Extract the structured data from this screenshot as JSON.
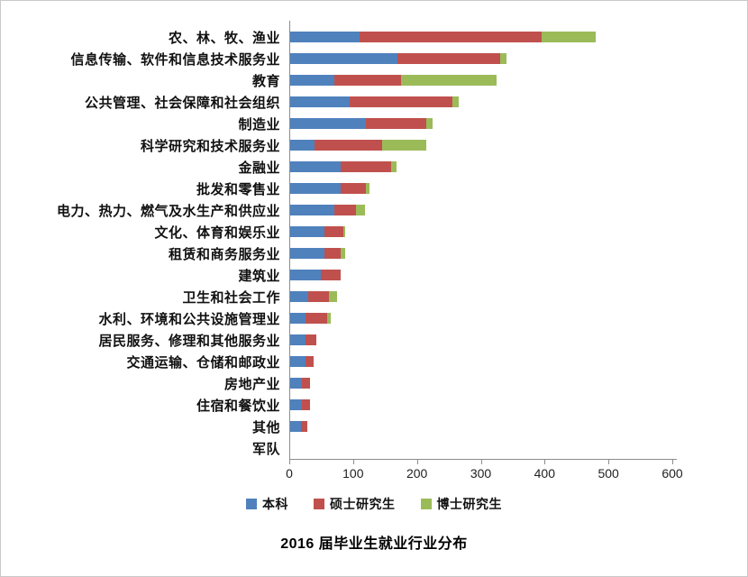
{
  "title": "2016 届毕业生就业行业分布",
  "chart_data": {
    "type": "bar",
    "orientation": "horizontal",
    "stacked": true,
    "grid": false,
    "legend_position": "bottom",
    "xlim": [
      0,
      600
    ],
    "x_ticks": [
      0,
      100,
      200,
      300,
      400,
      500,
      600
    ],
    "categories": [
      "农、林、牧、渔业",
      "信息传输、软件和信息技术服务业",
      "教育",
      "公共管理、社会保障和社会组织",
      "制造业",
      "科学研究和技术服务业",
      "金融业",
      "批发和零售业",
      "电力、热力、燃气及水生产和供应业",
      "文化、体育和娱乐业",
      "租赁和商务服务业",
      "建筑业",
      "卫生和社会工作",
      "水利、环境和公共设施管理业",
      "居民服务、修理和其他服务业",
      "交通运输、仓储和邮政业",
      "房地产业",
      "住宿和餐饮业",
      "其他",
      "军队"
    ],
    "series": [
      {
        "name": "本科",
        "key": "bachelor",
        "color": "#4f81bd",
        "values": [
          110,
          170,
          70,
          95,
          120,
          40,
          80,
          80,
          70,
          55,
          55,
          50,
          30,
          25,
          25,
          25,
          20,
          20,
          18,
          2
        ]
      },
      {
        "name": "硕士研究生",
        "key": "master",
        "color": "#c0504d",
        "values": [
          285,
          160,
          105,
          160,
          95,
          105,
          80,
          40,
          35,
          30,
          25,
          30,
          32,
          35,
          18,
          13,
          13,
          12,
          10,
          0
        ]
      },
      {
        "name": "博士研究生",
        "key": "doctor",
        "color": "#9bbb59",
        "values": [
          85,
          10,
          150,
          10,
          10,
          70,
          8,
          5,
          13,
          3,
          8,
          0,
          13,
          5,
          0,
          0,
          0,
          0,
          0,
          0
        ]
      }
    ]
  }
}
